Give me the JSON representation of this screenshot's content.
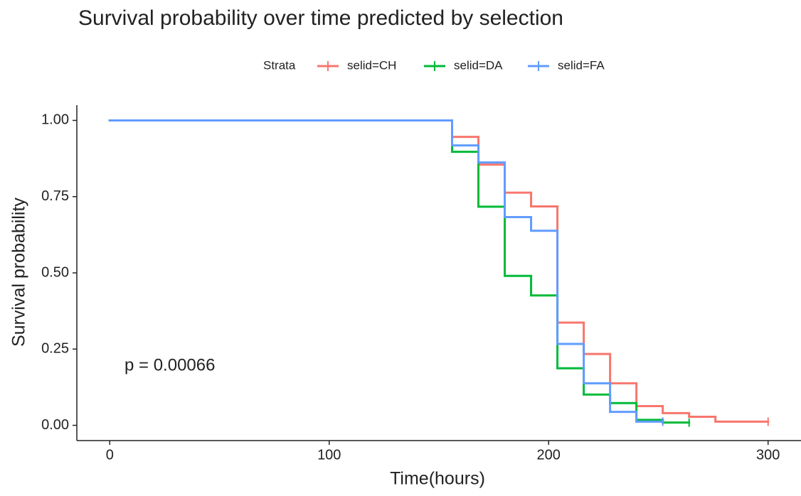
{
  "chart_data": {
    "type": "step",
    "title": "Survival probability over time predicted by selection",
    "x_label": "Time(hours)",
    "y_label": "Survival probability",
    "legend_title": "Strata",
    "annotation": "p = 0.00066",
    "xlim": [
      -15,
      315
    ],
    "xticks": [
      0,
      100,
      200,
      300
    ],
    "ylim": [
      -0.05,
      1.05
    ],
    "yticks": [
      {
        "value": 0,
        "label": "0.00"
      },
      {
        "value": 0.25,
        "label": "0.25"
      },
      {
        "value": 0.5,
        "label": "0.50"
      },
      {
        "value": 0.75,
        "label": "0.75"
      },
      {
        "value": 1,
        "label": "1.00"
      }
    ],
    "series": [
      {
        "name": "selid=CH",
        "color": "#f8766d",
        "x": [
          0,
          156,
          168,
          180,
          192,
          204,
          216,
          228,
          240,
          252,
          264,
          276,
          300
        ],
        "values": [
          1.0,
          0.946,
          0.855,
          0.763,
          0.718,
          0.337,
          0.234,
          0.138,
          0.063,
          0.04,
          0.028,
          0.012,
          0.012
        ]
      },
      {
        "name": "selid=DA",
        "color": "#00ba38",
        "x": [
          0,
          156,
          168,
          180,
          192,
          204,
          216,
          228,
          240,
          252,
          264
        ],
        "values": [
          1.0,
          0.897,
          0.717,
          0.49,
          0.426,
          0.187,
          0.101,
          0.073,
          0.018,
          0.009,
          0.009
        ]
      },
      {
        "name": "selid=FA",
        "color": "#619cff",
        "x": [
          0,
          156,
          168,
          180,
          192,
          204,
          216,
          228,
          240,
          252
        ],
        "values": [
          1.0,
          0.918,
          0.862,
          0.683,
          0.638,
          0.267,
          0.138,
          0.044,
          0.012,
          0.012
        ]
      }
    ]
  }
}
